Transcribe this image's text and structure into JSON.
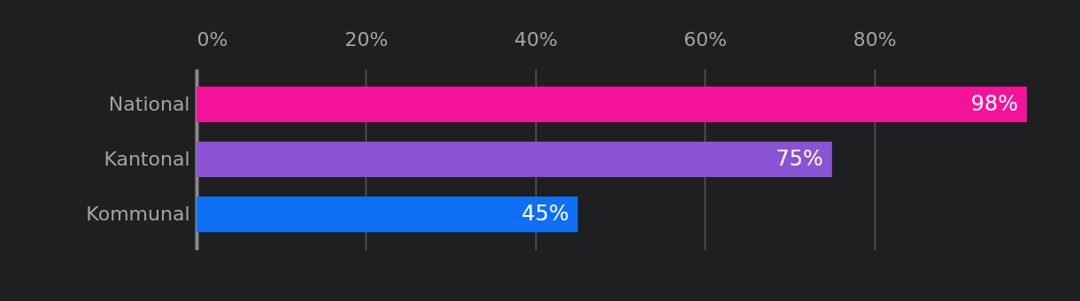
{
  "chart_data": {
    "type": "bar",
    "orientation": "horizontal",
    "categories": [
      "National",
      "Kantonal",
      "Kommunal"
    ],
    "values": [
      98,
      75,
      45
    ],
    "colors": [
      "#f5129a",
      "#8a52d4",
      "#0f6ff5"
    ],
    "value_labels": [
      "98%",
      "75%",
      "45%"
    ],
    "xlim": [
      0,
      98
    ],
    "xticks": [
      {
        "value": 0,
        "label": "0%"
      },
      {
        "value": 20,
        "label": "20%"
      },
      {
        "value": 40,
        "label": "40%"
      },
      {
        "value": 60,
        "label": "60%"
      },
      {
        "value": 80,
        "label": "80%"
      }
    ],
    "grid": "x",
    "legend": false
  }
}
